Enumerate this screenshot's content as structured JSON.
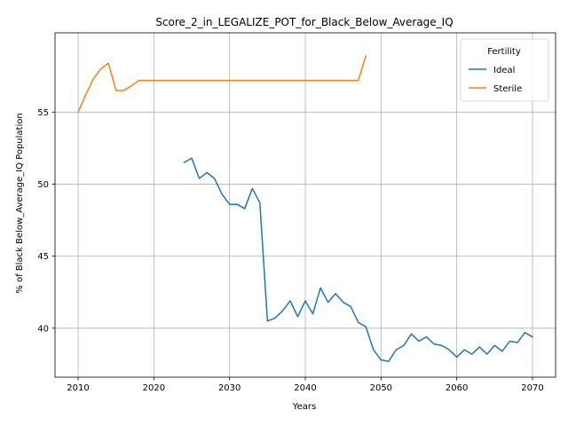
{
  "chart_data": {
    "type": "line",
    "title": "Score_2_in_LEGALIZE_POT_for_Black_Below_Average_IQ",
    "xlabel": "Years",
    "ylabel": "% of Black Below_Average_IQ Population",
    "xlim": [
      2006.95,
      2073.05
    ],
    "ylim": [
      36.6,
      60.5
    ],
    "xticks": [
      2010,
      2020,
      2030,
      2040,
      2050,
      2060,
      2070
    ],
    "yticks": [
      40,
      45,
      50,
      55
    ],
    "grid": true,
    "legend": {
      "title": "Fertility",
      "position": "top-right"
    },
    "series": [
      {
        "name": "Ideal",
        "color": "#1f77b4",
        "x": [
          2024,
          2025,
          2026,
          2027,
          2028,
          2029,
          2030,
          2031,
          2032,
          2033,
          2034,
          2035,
          2036,
          2037,
          2038,
          2039,
          2040,
          2041,
          2042,
          2043,
          2044,
          2045,
          2046,
          2047,
          2048,
          2049,
          2050,
          2051,
          2052,
          2053,
          2054,
          2055,
          2056,
          2057,
          2058,
          2059,
          2060,
          2061,
          2062,
          2063,
          2064,
          2065,
          2066,
          2067,
          2068,
          2069,
          2070
        ],
        "y": [
          51.5,
          51.8,
          50.4,
          50.8,
          50.4,
          49.3,
          48.6,
          48.6,
          48.3,
          49.7,
          48.7,
          40.5,
          40.7,
          41.2,
          41.9,
          40.8,
          41.9,
          41.0,
          42.8,
          41.8,
          42.4,
          41.8,
          41.5,
          40.4,
          40.1,
          38.5,
          37.8,
          37.7,
          38.5,
          38.8,
          39.6,
          39.1,
          39.4,
          38.9,
          38.8,
          38.5,
          38.0,
          38.5,
          38.2,
          38.7,
          38.2,
          38.8,
          38.4,
          39.1,
          39.0,
          39.7,
          39.4
        ]
      },
      {
        "name": "Sterile",
        "color": "#ff7f0e",
        "x": [
          2010,
          2011,
          2012,
          2013,
          2014,
          2015,
          2016,
          2017,
          2018,
          2019,
          2020,
          2021,
          2022,
          2023,
          2024,
          2025,
          2026,
          2027,
          2028,
          2029,
          2030,
          2031,
          2032,
          2033,
          2034,
          2035,
          2036,
          2037,
          2038,
          2039,
          2040,
          2041,
          2042,
          2043,
          2044,
          2045,
          2046,
          2047,
          2048
        ],
        "y": [
          55.0,
          56.2,
          57.3,
          58.0,
          58.4,
          56.5,
          56.5,
          56.8,
          57.2,
          57.2,
          57.2,
          57.2,
          57.2,
          57.2,
          57.2,
          57.2,
          57.2,
          57.2,
          57.2,
          57.2,
          57.2,
          57.2,
          57.2,
          57.2,
          57.2,
          57.2,
          57.2,
          57.2,
          57.2,
          57.2,
          57.2,
          57.2,
          57.2,
          57.2,
          57.2,
          57.2,
          57.2,
          57.2,
          58.9
        ]
      }
    ]
  }
}
